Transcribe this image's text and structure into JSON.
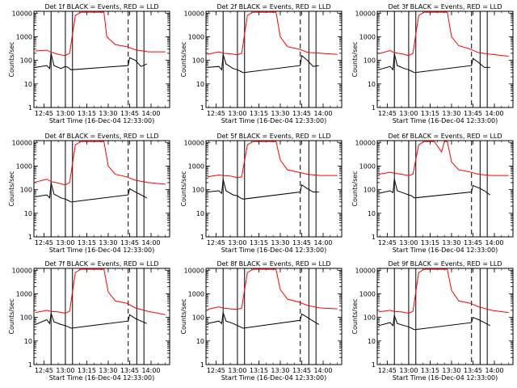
{
  "chart_data": {
    "type": "line",
    "xlabel": "Start Time (16-Dec-04 12:33:00)",
    "ylabel": "Counts/sec",
    "xlim_min_since_start": [
      5,
      100
    ],
    "x_tick_labels": [
      "12:45",
      "13:00",
      "13:15",
      "13:30",
      "13:45",
      "14:00"
    ],
    "x_tick_minutes_since_start": [
      12,
      27,
      42,
      57,
      72,
      87
    ],
    "y_scale": "log",
    "ylim": [
      1,
      12000
    ],
    "y_tick_labels": [
      "1",
      "10",
      "100",
      "1000",
      "10000"
    ],
    "y_tick_values": [
      1,
      10,
      100,
      1000,
      10000
    ],
    "colors": {
      "black_series": "#000000",
      "red_series": "#ff0000"
    },
    "legend": "title text",
    "panels": [
      {
        "title": "Det 1f BLACK = Events, RED = LLD",
        "vlines_solid": [
          17,
          27,
          32,
          77,
          82
        ],
        "vlines_dashed": [
          71
        ],
        "red": [
          [
            6,
            250
          ],
          [
            14,
            270
          ],
          [
            17,
            220
          ],
          [
            22,
            180
          ],
          [
            27,
            160
          ],
          [
            30,
            200
          ],
          [
            34,
            8000
          ],
          [
            38,
            11000
          ],
          [
            45,
            11000
          ],
          [
            54,
            11000
          ],
          [
            56,
            1000
          ],
          [
            62,
            460
          ],
          [
            70,
            380
          ],
          [
            76,
            280
          ],
          [
            85,
            230
          ],
          [
            97,
            230
          ]
        ],
        "black": [
          [
            6,
            50
          ],
          [
            14,
            60
          ],
          [
            16,
            45
          ],
          [
            17,
            200
          ],
          [
            19,
            60
          ],
          [
            24,
            45
          ],
          [
            27,
            55
          ],
          [
            29,
            50
          ],
          [
            31,
            40
          ],
          [
            71,
            60
          ],
          [
            72,
            130
          ],
          [
            76,
            100
          ],
          [
            80,
            55
          ],
          [
            84,
            70
          ]
        ]
      },
      {
        "title": "Det 2f BLACK = Events, RED = LLD",
        "vlines_solid": [
          17,
          27,
          32,
          77,
          82
        ],
        "vlines_dashed": [
          71
        ],
        "red": [
          [
            6,
            180
          ],
          [
            14,
            230
          ],
          [
            17,
            200
          ],
          [
            22,
            190
          ],
          [
            27,
            170
          ],
          [
            30,
            200
          ],
          [
            34,
            8000
          ],
          [
            38,
            11000
          ],
          [
            45,
            11000
          ],
          [
            54,
            11000
          ],
          [
            57,
            1000
          ],
          [
            62,
            380
          ],
          [
            70,
            300
          ],
          [
            76,
            220
          ],
          [
            85,
            200
          ],
          [
            97,
            180
          ]
        ],
        "black": [
          [
            6,
            50
          ],
          [
            14,
            55
          ],
          [
            16,
            40
          ],
          [
            17,
            180
          ],
          [
            19,
            70
          ],
          [
            24,
            45
          ],
          [
            27,
            40
          ],
          [
            29,
            35
          ],
          [
            31,
            30
          ],
          [
            71,
            60
          ],
          [
            72,
            160
          ],
          [
            76,
            100
          ],
          [
            80,
            55
          ],
          [
            84,
            60
          ]
        ]
      },
      {
        "title": "Det 3f BLACK = Events, RED = LLD",
        "vlines_solid": [
          17,
          27,
          32,
          77,
          82
        ],
        "vlines_dashed": [
          71
        ],
        "red": [
          [
            6,
            190
          ],
          [
            14,
            260
          ],
          [
            17,
            210
          ],
          [
            22,
            190
          ],
          [
            27,
            160
          ],
          [
            30,
            200
          ],
          [
            34,
            8000
          ],
          [
            38,
            11000
          ],
          [
            45,
            11000
          ],
          [
            54,
            11000
          ],
          [
            57,
            1000
          ],
          [
            62,
            420
          ],
          [
            70,
            300
          ],
          [
            76,
            210
          ],
          [
            85,
            180
          ],
          [
            97,
            150
          ]
        ],
        "black": [
          [
            6,
            40
          ],
          [
            14,
            55
          ],
          [
            16,
            40
          ],
          [
            17,
            190
          ],
          [
            19,
            60
          ],
          [
            24,
            45
          ],
          [
            27,
            40
          ],
          [
            29,
            35
          ],
          [
            31,
            30
          ],
          [
            71,
            60
          ],
          [
            72,
            120
          ],
          [
            76,
            80
          ],
          [
            80,
            50
          ],
          [
            84,
            50
          ]
        ]
      },
      {
        "title": "Det 4f BLACK = Events, RED = LLD",
        "vlines_solid": [
          17,
          27,
          32,
          77,
          82
        ],
        "vlines_dashed": [
          71
        ],
        "red": [
          [
            6,
            210
          ],
          [
            14,
            280
          ],
          [
            17,
            220
          ],
          [
            22,
            190
          ],
          [
            27,
            160
          ],
          [
            30,
            200
          ],
          [
            34,
            8000
          ],
          [
            38,
            11000
          ],
          [
            45,
            11000
          ],
          [
            54,
            11000
          ],
          [
            57,
            1000
          ],
          [
            62,
            450
          ],
          [
            70,
            350
          ],
          [
            76,
            250
          ],
          [
            85,
            200
          ],
          [
            97,
            170
          ]
        ],
        "black": [
          [
            6,
            50
          ],
          [
            14,
            60
          ],
          [
            16,
            45
          ],
          [
            17,
            200
          ],
          [
            19,
            65
          ],
          [
            24,
            45
          ],
          [
            27,
            40
          ],
          [
            29,
            35
          ],
          [
            31,
            30
          ],
          [
            71,
            60
          ],
          [
            72,
            110
          ],
          [
            76,
            80
          ],
          [
            80,
            60
          ],
          [
            84,
            45
          ]
        ]
      },
      {
        "title": "Det 5f BLACK = Events, RED = LLD",
        "vlines_solid": [
          17,
          27,
          32,
          77,
          82
        ],
        "vlines_dashed": [
          71
        ],
        "red": [
          [
            6,
            350
          ],
          [
            14,
            420
          ],
          [
            17,
            400
          ],
          [
            22,
            380
          ],
          [
            27,
            320
          ],
          [
            30,
            350
          ],
          [
            34,
            8000
          ],
          [
            38,
            11000
          ],
          [
            45,
            11000
          ],
          [
            54,
            11000
          ],
          [
            57,
            1800
          ],
          [
            62,
            700
          ],
          [
            70,
            550
          ],
          [
            76,
            450
          ],
          [
            85,
            400
          ],
          [
            97,
            400
          ]
        ],
        "black": [
          [
            6,
            80
          ],
          [
            14,
            90
          ],
          [
            16,
            70
          ],
          [
            17,
            280
          ],
          [
            19,
            90
          ],
          [
            24,
            60
          ],
          [
            27,
            55
          ],
          [
            29,
            45
          ],
          [
            31,
            40
          ],
          [
            71,
            80
          ],
          [
            72,
            160
          ],
          [
            76,
            110
          ],
          [
            80,
            80
          ],
          [
            84,
            80
          ]
        ]
      },
      {
        "title": "Det 6f BLACK = Events, RED = LLD",
        "vlines_solid": [
          17,
          27,
          32,
          77,
          82
        ],
        "vlines_dashed": [
          71
        ],
        "red": [
          [
            6,
            450
          ],
          [
            14,
            550
          ],
          [
            17,
            500
          ],
          [
            22,
            450
          ],
          [
            27,
            400
          ],
          [
            30,
            450
          ],
          [
            34,
            8000
          ],
          [
            38,
            11000
          ],
          [
            45,
            11000
          ],
          [
            50,
            4000
          ],
          [
            52,
            11000
          ],
          [
            54,
            11000
          ],
          [
            57,
            1500
          ],
          [
            62,
            700
          ],
          [
            70,
            560
          ],
          [
            76,
            450
          ],
          [
            85,
            400
          ],
          [
            97,
            400
          ]
        ],
        "black": [
          [
            6,
            70
          ],
          [
            14,
            90
          ],
          [
            16,
            75
          ],
          [
            17,
            280
          ],
          [
            19,
            90
          ],
          [
            24,
            70
          ],
          [
            27,
            60
          ],
          [
            29,
            55
          ],
          [
            31,
            45
          ],
          [
            71,
            80
          ],
          [
            72,
            150
          ],
          [
            76,
            120
          ],
          [
            80,
            90
          ],
          [
            84,
            60
          ]
        ]
      },
      {
        "title": "Det 7f BLACK = Events, RED = LLD",
        "vlines_solid": [
          17,
          27,
          32,
          77,
          82
        ],
        "vlines_dashed": [
          71
        ],
        "red": [
          [
            6,
            160
          ],
          [
            14,
            200
          ],
          [
            17,
            180
          ],
          [
            22,
            170
          ],
          [
            27,
            150
          ],
          [
            30,
            180
          ],
          [
            34,
            8000
          ],
          [
            38,
            11000
          ],
          [
            45,
            11000
          ],
          [
            54,
            11000
          ],
          [
            57,
            1200
          ],
          [
            62,
            500
          ],
          [
            70,
            400
          ],
          [
            76,
            250
          ],
          [
            85,
            180
          ],
          [
            97,
            130
          ]
        ],
        "black": [
          [
            6,
            50
          ],
          [
            14,
            80
          ],
          [
            16,
            55
          ],
          [
            17,
            150
          ],
          [
            19,
            65
          ],
          [
            24,
            50
          ],
          [
            27,
            45
          ],
          [
            29,
            40
          ],
          [
            31,
            35
          ],
          [
            71,
            70
          ],
          [
            72,
            130
          ],
          [
            76,
            90
          ],
          [
            80,
            70
          ],
          [
            84,
            55
          ]
        ]
      },
      {
        "title": "Det 8f BLACK = Events, RED = LLD",
        "vlines_solid": [
          17,
          27,
          32,
          77,
          82
        ],
        "vlines_dashed": [
          71
        ],
        "red": [
          [
            6,
            220
          ],
          [
            14,
            280
          ],
          [
            17,
            250
          ],
          [
            22,
            230
          ],
          [
            27,
            220
          ],
          [
            30,
            250
          ],
          [
            34,
            8000
          ],
          [
            38,
            11000
          ],
          [
            45,
            11000
          ],
          [
            54,
            11000
          ],
          [
            57,
            1500
          ],
          [
            62,
            600
          ],
          [
            70,
            450
          ],
          [
            76,
            320
          ],
          [
            85,
            250
          ],
          [
            97,
            230
          ]
        ],
        "black": [
          [
            6,
            55
          ],
          [
            14,
            70
          ],
          [
            16,
            55
          ],
          [
            17,
            160
          ],
          [
            19,
            70
          ],
          [
            24,
            55
          ],
          [
            27,
            45
          ],
          [
            29,
            40
          ],
          [
            31,
            35
          ],
          [
            71,
            75
          ],
          [
            72,
            140
          ],
          [
            76,
            100
          ],
          [
            80,
            70
          ],
          [
            84,
            50
          ]
        ]
      },
      {
        "title": "Det 9f BLACK = Events, RED = LLD",
        "vlines_solid": [
          17,
          27,
          32,
          77,
          82
        ],
        "vlines_dashed": [
          71
        ],
        "red": [
          [
            6,
            170
          ],
          [
            14,
            200
          ],
          [
            17,
            180
          ],
          [
            22,
            170
          ],
          [
            27,
            150
          ],
          [
            30,
            180
          ],
          [
            34,
            8000
          ],
          [
            38,
            11000
          ],
          [
            45,
            11000
          ],
          [
            54,
            11000
          ],
          [
            57,
            1400
          ],
          [
            62,
            500
          ],
          [
            70,
            400
          ],
          [
            76,
            280
          ],
          [
            85,
            200
          ],
          [
            97,
            160
          ]
        ],
        "black": [
          [
            6,
            45
          ],
          [
            14,
            60
          ],
          [
            16,
            45
          ],
          [
            17,
            120
          ],
          [
            19,
            55
          ],
          [
            24,
            45
          ],
          [
            27,
            40
          ],
          [
            29,
            35
          ],
          [
            31,
            30
          ],
          [
            71,
            60
          ],
          [
            72,
            100
          ],
          [
            76,
            80
          ],
          [
            80,
            60
          ],
          [
            84,
            45
          ]
        ]
      }
    ]
  }
}
